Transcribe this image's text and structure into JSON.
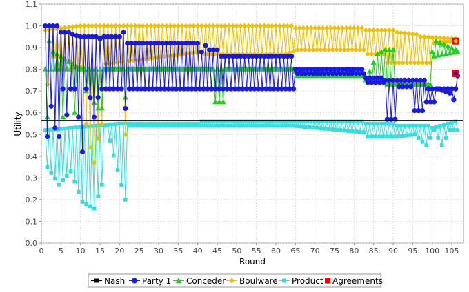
{
  "chart_data": {
    "type": "line",
    "xlabel": "Round",
    "ylabel": "Utility",
    "xlim": [
      0,
      108
    ],
    "ylim": [
      0,
      1.1
    ],
    "xticks": [
      0,
      5,
      10,
      15,
      20,
      25,
      30,
      35,
      40,
      45,
      50,
      55,
      60,
      65,
      70,
      75,
      80,
      85,
      90,
      95,
      100,
      105
    ],
    "yticks": [
      0.0,
      0.1,
      0.2,
      0.3,
      0.4,
      0.5,
      0.6,
      0.7,
      0.8,
      0.9,
      1.0,
      1.1
    ],
    "grid": true,
    "legend_position": "bottom",
    "nash_level": 0.565,
    "series": [
      {
        "name": "Nash",
        "color": "#000000",
        "marker": "square"
      },
      {
        "name": "Party 1",
        "color": "#1919e6",
        "marker": "circle",
        "hi": [
          [
            1,
            1.0
          ],
          [
            3,
            1.0
          ],
          [
            4,
            1.0
          ],
          [
            5,
            0.97
          ],
          [
            7,
            0.97
          ],
          [
            8,
            0.96
          ],
          [
            10,
            0.95
          ],
          [
            14,
            0.95
          ],
          [
            15,
            0.94
          ],
          [
            16,
            0.95
          ],
          [
            20,
            0.95
          ],
          [
            21,
            0.97
          ],
          [
            22,
            0.92
          ],
          [
            40,
            0.92
          ],
          [
            41,
            0.88
          ],
          [
            42,
            0.91
          ],
          [
            43,
            0.89
          ],
          [
            45,
            0.89
          ],
          [
            46,
            0.86
          ],
          [
            64,
            0.86
          ],
          [
            65,
            0.8
          ],
          [
            82,
            0.8
          ],
          [
            83,
            0.76
          ],
          [
            87,
            0.76
          ],
          [
            88,
            0.75
          ],
          [
            98,
            0.75
          ],
          [
            99,
            0.71
          ],
          [
            106,
            0.71
          ]
        ],
        "lo": [
          [
            1,
            0.71
          ],
          [
            41,
            0.71
          ],
          [
            42,
            0.71
          ],
          [
            64,
            0.71
          ],
          [
            65,
            0.78
          ],
          [
            82,
            0.78
          ],
          [
            83,
            0.74
          ],
          [
            87,
            0.74
          ],
          [
            88,
            0.57
          ],
          [
            90,
            0.57
          ],
          [
            91,
            0.72
          ],
          [
            94,
            0.72
          ],
          [
            95,
            0.61
          ],
          [
            97,
            0.61
          ],
          [
            98,
            0.65
          ],
          [
            100,
            0.65
          ],
          [
            101,
            0.71
          ],
          [
            104,
            0.69
          ],
          [
            105,
            0.66
          ],
          [
            106,
            0.77
          ]
        ],
        "dips": [
          [
            1,
            0.49
          ],
          [
            2,
            0.63
          ],
          [
            3,
            0.53
          ],
          [
            4,
            0.49
          ],
          [
            6,
            0.59
          ],
          [
            9,
            0.58
          ],
          [
            10,
            0.42
          ],
          [
            12,
            0.67
          ],
          [
            13,
            0.58
          ],
          [
            14,
            0.67
          ],
          [
            21,
            0.62
          ]
        ]
      },
      {
        "name": "Conceder",
        "color": "#22cc22",
        "marker": "triangle",
        "hi": [
          [
            1,
            0.8
          ],
          [
            2,
            0.93
          ],
          [
            3,
            0.88
          ],
          [
            10,
            0.8
          ],
          [
            64,
            0.8
          ],
          [
            65,
            0.79
          ],
          [
            82,
            0.79
          ],
          [
            83,
            0.75
          ],
          [
            86,
            0.87
          ],
          [
            88,
            0.89
          ],
          [
            90,
            0.89
          ],
          [
            91,
            0.73
          ],
          [
            99,
            0.73
          ],
          [
            100,
            0.88
          ],
          [
            101,
            0.93
          ],
          [
            106,
            0.89
          ]
        ],
        "lo": [
          [
            1,
            0.8
          ],
          [
            10,
            0.8
          ],
          [
            11,
            0.7
          ],
          [
            14,
            0.62
          ],
          [
            15,
            0.62
          ],
          [
            16,
            0.8
          ],
          [
            43,
            0.8
          ],
          [
            44,
            0.65
          ],
          [
            46,
            0.65
          ],
          [
            47,
            0.8
          ],
          [
            64,
            0.8
          ],
          [
            65,
            0.77
          ],
          [
            82,
            0.77
          ],
          [
            83,
            0.74
          ],
          [
            87,
            0.74
          ],
          [
            88,
            0.73
          ],
          [
            99,
            0.73
          ],
          [
            100,
            0.86
          ],
          [
            106,
            0.88
          ]
        ],
        "dips": [
          [
            1,
            0.58
          ],
          [
            5,
            0.58
          ],
          [
            8,
            0.6
          ],
          [
            21,
            0.67
          ]
        ]
      },
      {
        "name": "Boulware",
        "color": "#f0c000",
        "marker": "diamond",
        "hi": [
          [
            1,
            0.98
          ],
          [
            10,
            1.0
          ],
          [
            64,
            1.0
          ],
          [
            65,
            0.99
          ],
          [
            82,
            0.99
          ],
          [
            83,
            0.98
          ],
          [
            90,
            0.98
          ],
          [
            91,
            0.97
          ],
          [
            96,
            0.96
          ],
          [
            97,
            0.95
          ],
          [
            106,
            0.94
          ]
        ],
        "lo": [
          [
            1,
            0.86
          ],
          [
            4,
            0.86
          ],
          [
            5,
            0.8
          ],
          [
            40,
            0.88
          ],
          [
            41,
            0.87
          ],
          [
            62,
            0.87
          ],
          [
            65,
            0.89
          ],
          [
            82,
            0.89
          ],
          [
            83,
            0.87
          ],
          [
            87,
            0.87
          ],
          [
            88,
            0.83
          ],
          [
            99,
            0.83
          ],
          [
            100,
            0.92
          ],
          [
            106,
            0.93
          ]
        ],
        "dips": [
          [
            1,
            0.73
          ],
          [
            11,
            0.55
          ],
          [
            12,
            0.44
          ],
          [
            13,
            0.37
          ],
          [
            14,
            0.48
          ],
          [
            15,
            0.55
          ],
          [
            21,
            0.5
          ]
        ]
      },
      {
        "name": "Product",
        "color": "#33dddd",
        "marker": "square",
        "hi": [
          [
            1,
            0.52
          ],
          [
            20,
            0.55
          ],
          [
            21,
            0.55
          ],
          [
            40,
            0.55
          ],
          [
            41,
            0.56
          ],
          [
            64,
            0.56
          ],
          [
            65,
            0.56
          ],
          [
            82,
            0.56
          ],
          [
            83,
            0.55
          ],
          [
            90,
            0.55
          ],
          [
            91,
            0.54
          ],
          [
            99,
            0.54
          ],
          [
            100,
            0.53
          ],
          [
            106,
            0.56
          ]
        ],
        "lo": [
          [
            1,
            0.35
          ],
          [
            4,
            0.27
          ],
          [
            7,
            0.33
          ],
          [
            10,
            0.19
          ],
          [
            13,
            0.16
          ],
          [
            15,
            0.27
          ],
          [
            16,
            0.54
          ],
          [
            21,
            0.2
          ],
          [
            22,
            0.54
          ],
          [
            40,
            0.54
          ],
          [
            64,
            0.54
          ],
          [
            82,
            0.51
          ],
          [
            83,
            0.49
          ],
          [
            90,
            0.49
          ],
          [
            95,
            0.5
          ],
          [
            98,
            0.45
          ],
          [
            100,
            0.52
          ],
          [
            102,
            0.45
          ],
          [
            104,
            0.52
          ],
          [
            106,
            0.52
          ]
        ]
      }
    ],
    "agreements": [
      {
        "x": 106,
        "y": 0.93,
        "color": "#f0c000"
      },
      {
        "x": 106,
        "y": 0.78,
        "color": "#1919e6"
      }
    ]
  },
  "legend": {
    "nash": "Nash",
    "party1": "Party 1",
    "conceder": "Conceder",
    "boulware": "Boulware",
    "product": "Product",
    "agreements": "Agreements"
  },
  "colors": {
    "nash": "#000000",
    "party1": "#1919e6",
    "conceder": "#22cc22",
    "boulware": "#f0c000",
    "product": "#33dddd",
    "agreements": "#ff0000"
  }
}
